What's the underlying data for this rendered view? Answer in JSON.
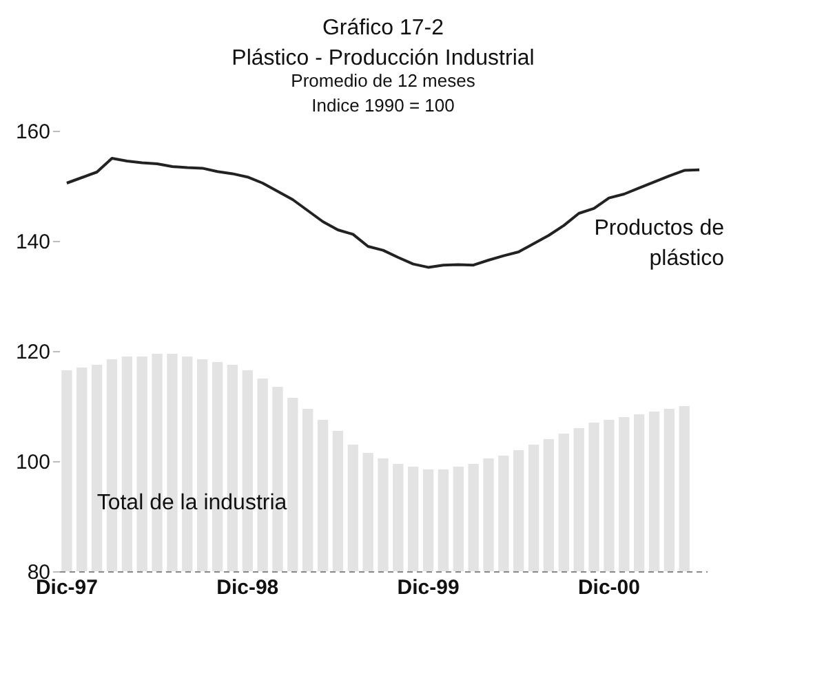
{
  "chart_data": {
    "type": "bar",
    "title": "Plástico - Producción Industrial",
    "subtitle": "Promedio de 12 meses",
    "annotations": [
      "Gráfico 17-2",
      "Indice 1990 = 100"
    ],
    "categories": [
      "Dic-97",
      null,
      null,
      null,
      null,
      null,
      null,
      null,
      null,
      null,
      null,
      null,
      "Dic-98",
      null,
      null,
      null,
      null,
      null,
      null,
      null,
      null,
      null,
      null,
      null,
      "Dic-99",
      null,
      null,
      null,
      null,
      null,
      null,
      null,
      null,
      null,
      null,
      null,
      "Dic-00",
      null,
      null,
      null,
      null,
      null,
      null
    ],
    "series": [
      {
        "name": "Total de la industria",
        "color": "#e3e3e3",
        "values": [
          116.5,
          117,
          117.5,
          118.5,
          119,
          119,
          119.5,
          119.5,
          119,
          118.5,
          118,
          117.5,
          116.5,
          115,
          113.5,
          111.5,
          109.5,
          107.5,
          105.5,
          103,
          101.5,
          100.5,
          99.5,
          99,
          98.5,
          98.5,
          99,
          99.5,
          100.5,
          101,
          102,
          103,
          104,
          105,
          106,
          107,
          107.5,
          108,
          108.5,
          109,
          109.5,
          110,
          null
        ]
      },
      {
        "name": "Productos de plástico",
        "type": "line",
        "color": "#222222",
        "values": [
          150.5,
          151.5,
          152.5,
          155,
          154.5,
          154.2,
          154,
          153.5,
          153.3,
          153.2,
          152.6,
          152.2,
          151.6,
          150.5,
          149,
          147.5,
          145.5,
          143.5,
          142,
          141.2,
          139,
          138.3,
          137,
          135.8,
          135.2,
          135.6,
          135.7,
          135.6,
          136.5,
          137.3,
          138,
          139.5,
          141,
          142.8,
          145,
          145.9,
          147.8,
          148.5,
          149.6,
          150.7,
          151.8,
          152.8,
          152.9
        ]
      }
    ],
    "ylim": [
      80,
      160
    ],
    "yticks": [
      80,
      100,
      120,
      140,
      160
    ],
    "grid": false
  }
}
